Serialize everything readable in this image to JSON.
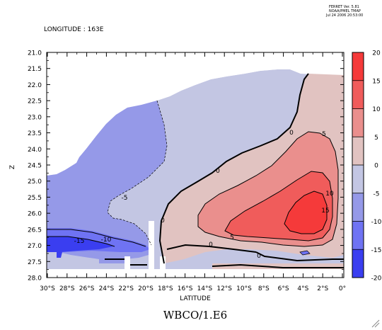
{
  "header": {
    "ferret_lines": [
      "FERRET Ver. 5.81",
      "NOAA/PMEL TMAP",
      "Jul 24 2006 20:53:00"
    ],
    "longitude_label": "LONGITUDE : 163E"
  },
  "chart_data": {
    "type": "heatmap",
    "title": "WBCO/1.E6",
    "xlabel": "LATITUDE",
    "ylabel": "Z",
    "xlim": [
      -31,
      0
    ],
    "ylim": [
      28.0,
      21.0
    ],
    "x_ticks": [
      "30°S",
      "28°S",
      "26°S",
      "24°S",
      "22°S",
      "20°S",
      "18°S",
      "16°S",
      "14°S",
      "12°S",
      "10°S",
      "8°S",
      "6°S",
      "4°S",
      "2°S",
      "0°"
    ],
    "y_ticks": [
      "21.0",
      "21.5",
      "22.0",
      "22.5",
      "23.0",
      "23.5",
      "24.0",
      "24.5",
      "25.0",
      "25.5",
      "26.0",
      "26.5",
      "27.0",
      "27.5",
      "28.0"
    ],
    "colorbar": {
      "levels": [
        -20,
        -15,
        -10,
        -5,
        0,
        5,
        10,
        15,
        20
      ],
      "labels": [
        "20",
        "15",
        "10",
        "5",
        "0",
        "-5",
        "-10",
        "-15",
        "-20"
      ],
      "colors": [
        "#3a3ef0",
        "#6f73f3",
        "#9599e8",
        "#c3c6e3",
        "#e1c3c1",
        "#ea8f8d",
        "#f05c5b",
        "#f53a3a"
      ]
    },
    "contour_labels": [
      "0",
      "0",
      "0",
      "0",
      "0",
      "5",
      "5",
      "10",
      "15",
      "-5",
      "-10",
      "-15"
    ]
  }
}
